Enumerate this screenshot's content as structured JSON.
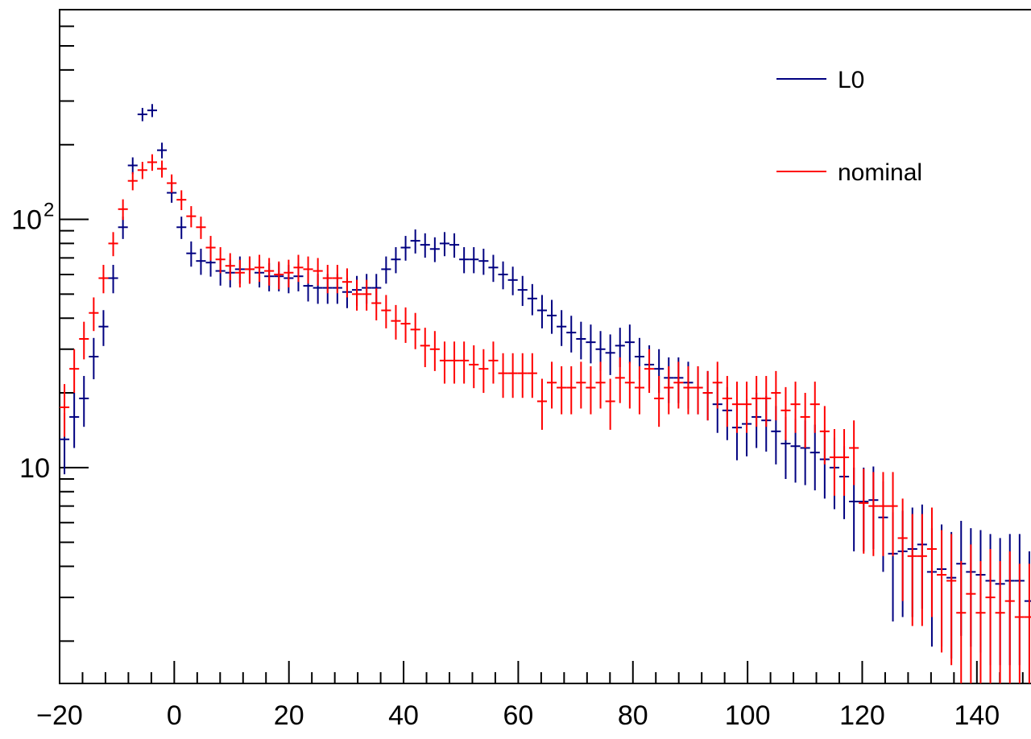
{
  "chart_data": {
    "type": "scatter",
    "title": "",
    "xlabel": "",
    "ylabel": "",
    "x_scale": "linear",
    "y_scale": "log",
    "xlim": [
      -20,
      150
    ],
    "ylim": [
      1.35,
      700
    ],
    "x_ticks": [
      -20,
      0,
      20,
      40,
      60,
      80,
      100,
      120,
      140
    ],
    "x_tick_labels": [
      "−20",
      "0",
      "20",
      "40",
      "60",
      "80",
      "100",
      "120",
      "140"
    ],
    "y_tick_labels": [
      {
        "value": 10,
        "base": "10",
        "exp": ""
      },
      {
        "value": 100,
        "base": "10",
        "exp": "2"
      }
    ],
    "grid": false,
    "legend_position": "top-right",
    "bin_width": 1.7,
    "series": [
      {
        "name": "L0",
        "color": "#000080",
        "x": [
          -19.15,
          -17.45,
          -15.75,
          -14.05,
          -12.35,
          -10.65,
          -8.95,
          -7.25,
          -5.55,
          -3.85,
          -2.15,
          -0.45,
          1.25,
          2.95,
          4.65,
          6.35,
          8.05,
          9.75,
          11.45,
          13.15,
          14.85,
          16.55,
          18.25,
          19.95,
          21.65,
          23.35,
          25.05,
          26.75,
          28.45,
          30.15,
          31.85,
          33.55,
          35.25,
          36.95,
          38.65,
          40.35,
          42.05,
          43.75,
          45.45,
          47.15,
          48.85,
          50.55,
          52.25,
          53.95,
          55.65,
          57.35,
          59.05,
          60.75,
          62.45,
          64.15,
          65.85,
          67.55,
          69.25,
          70.95,
          72.65,
          74.35,
          76.05,
          77.75,
          79.45,
          81.15,
          82.85,
          84.55,
          86.25,
          87.95,
          89.65,
          91.35,
          93.05,
          94.75,
          96.45,
          98.15,
          99.85,
          101.55,
          103.25,
          104.95,
          106.65,
          108.35,
          110.05,
          111.75,
          113.45,
          115.15,
          116.85,
          118.55,
          120.25,
          121.95,
          123.65,
          125.35,
          127.05,
          128.75,
          130.45,
          132.15,
          133.85,
          135.55,
          137.25,
          138.95,
          140.65,
          142.35,
          144.05,
          145.75,
          147.45,
          149.15
        ],
        "y": [
          13,
          16,
          19,
          28,
          37,
          58,
          93,
          165,
          265,
          275,
          190,
          128,
          93,
          73,
          68,
          67,
          62,
          61,
          63,
          63,
          61,
          59,
          59,
          58,
          59,
          54,
          53,
          53,
          53,
          51,
          52,
          53,
          53,
          63,
          69,
          77,
          82,
          79,
          76,
          80,
          79,
          69,
          69,
          68,
          64,
          60,
          57,
          52,
          48,
          43,
          41,
          37,
          35,
          33,
          32,
          30,
          29,
          31,
          32,
          28,
          26,
          25,
          23,
          23,
          22,
          21,
          20,
          18,
          17,
          14.5,
          15,
          16,
          15.5,
          14,
          12.5,
          12.2,
          12,
          11.5,
          10.8,
          10,
          9.2,
          7.3,
          7.3,
          7.4,
          6.3,
          4.5,
          4.6,
          4.7,
          4.9,
          3.8,
          3.9,
          3.6,
          4.1,
          3.8,
          3.7,
          3.5,
          3.4,
          3.5,
          3.5,
          2.9
        ],
        "err": [
          3.6,
          4,
          4.4,
          5.3,
          6.1,
          7.6,
          9.6,
          12.8,
          16.3,
          16.6,
          13.8,
          11.3,
          9.6,
          8.5,
          8.2,
          8.2,
          7.9,
          7.8,
          7.9,
          7.9,
          7.8,
          7.7,
          7.7,
          7.6,
          7.7,
          7.3,
          7.3,
          7.3,
          7.3,
          7.1,
          7.2,
          7.3,
          7.3,
          7.9,
          8.3,
          8.8,
          9.1,
          8.9,
          8.7,
          8.9,
          8.9,
          8.3,
          8.3,
          8.2,
          8,
          7.7,
          7.5,
          7.2,
          6.9,
          6.6,
          6.4,
          6.1,
          5.9,
          5.7,
          5.7,
          5.5,
          5.4,
          5.6,
          5.7,
          5.3,
          5.1,
          5,
          4.8,
          4.8,
          4.7,
          4.6,
          4.5,
          4.2,
          4.1,
          3.8,
          3.9,
          4,
          3.9,
          3.7,
          3.5,
          3.5,
          3.5,
          3.4,
          3.3,
          3.2,
          3,
          2.7,
          2.7,
          2.7,
          2.5,
          2.1,
          2.1,
          2.2,
          2.2,
          1.9,
          2,
          1.9,
          2,
          1.9,
          1.9,
          1.9,
          1.8,
          1.9,
          1.9,
          1.7
        ]
      },
      {
        "name": "nominal",
        "color": "#ff0000",
        "x": [
          -19.15,
          -17.45,
          -15.75,
          -14.05,
          -12.35,
          -10.65,
          -8.95,
          -7.25,
          -5.55,
          -3.85,
          -2.15,
          -0.45,
          1.25,
          2.95,
          4.65,
          6.35,
          8.05,
          9.75,
          11.45,
          13.15,
          14.85,
          16.55,
          18.25,
          19.95,
          21.65,
          23.35,
          25.05,
          26.75,
          28.45,
          30.15,
          31.85,
          33.55,
          35.25,
          36.95,
          38.65,
          40.35,
          42.05,
          43.75,
          45.45,
          47.15,
          48.85,
          50.55,
          52.25,
          53.95,
          55.65,
          57.35,
          59.05,
          60.75,
          62.45,
          64.15,
          65.85,
          67.55,
          69.25,
          70.95,
          72.65,
          74.35,
          76.05,
          77.75,
          79.45,
          81.15,
          82.85,
          84.55,
          86.25,
          87.95,
          89.65,
          91.35,
          93.05,
          94.75,
          96.45,
          98.15,
          99.85,
          101.55,
          103.25,
          104.95,
          106.65,
          108.35,
          110.05,
          111.75,
          113.45,
          115.15,
          116.85,
          118.55,
          120.25,
          121.95,
          123.65,
          125.35,
          127.05,
          128.75,
          130.45,
          132.15,
          133.85,
          135.55,
          137.25,
          138.95,
          140.65,
          142.35,
          144.05,
          145.75,
          147.45,
          149.15
        ],
        "y": [
          17.5,
          25,
          33,
          42,
          58,
          80,
          110,
          143,
          158,
          170,
          160,
          140,
          120,
          103,
          93,
          77,
          69,
          65,
          61,
          63,
          64,
          62,
          60,
          61,
          64,
          63,
          62,
          58,
          58,
          56,
          50,
          50,
          46,
          43,
          39,
          38,
          36,
          31,
          30,
          27,
          27,
          27,
          26,
          25,
          27,
          24,
          24,
          24,
          24,
          18.5,
          22,
          21,
          21,
          22,
          21,
          22,
          18.5,
          23,
          22,
          21,
          25,
          19,
          21,
          22,
          21,
          21,
          20,
          22,
          19,
          18,
          18,
          19,
          19,
          20,
          17,
          18,
          16,
          18,
          14,
          11,
          11,
          12,
          7.2,
          7,
          7,
          7,
          5.2,
          4.4,
          4.4,
          4.7,
          3.7,
          3.5,
          2.6,
          3.1,
          2.6,
          3,
          2.6,
          2.9,
          2.5,
          2.5
        ],
        "err": [
          4.2,
          5,
          5.7,
          6.5,
          7.6,
          8.9,
          10.5,
          12,
          12.6,
          13,
          12.6,
          11.8,
          11,
          10.1,
          9.6,
          8.8,
          8.3,
          8.1,
          7.8,
          7.9,
          8,
          7.9,
          7.7,
          7.8,
          8,
          7.9,
          7.9,
          7.6,
          7.6,
          7.5,
          7.1,
          7.1,
          6.8,
          6.6,
          6.2,
          6.2,
          6,
          5.6,
          5.5,
          5.2,
          5.2,
          5.2,
          5.1,
          5,
          5.2,
          4.9,
          4.9,
          4.9,
          4.9,
          4.3,
          4.7,
          4.6,
          4.6,
          4.7,
          4.6,
          4.7,
          4.3,
          4.8,
          4.7,
          4.6,
          5,
          4.4,
          4.6,
          4.7,
          4.6,
          4.6,
          4.5,
          4.7,
          4.4,
          4.2,
          4.2,
          4.4,
          4.4,
          4.5,
          4.1,
          4.2,
          4,
          4.2,
          3.7,
          3.3,
          3.3,
          3.5,
          2.7,
          2.6,
          2.6,
          2.6,
          2.3,
          2.1,
          2.1,
          2.2,
          1.9,
          1.9,
          1.6,
          1.8,
          1.6,
          1.7,
          1.6,
          1.7,
          1.6,
          1.6
        ]
      }
    ]
  }
}
